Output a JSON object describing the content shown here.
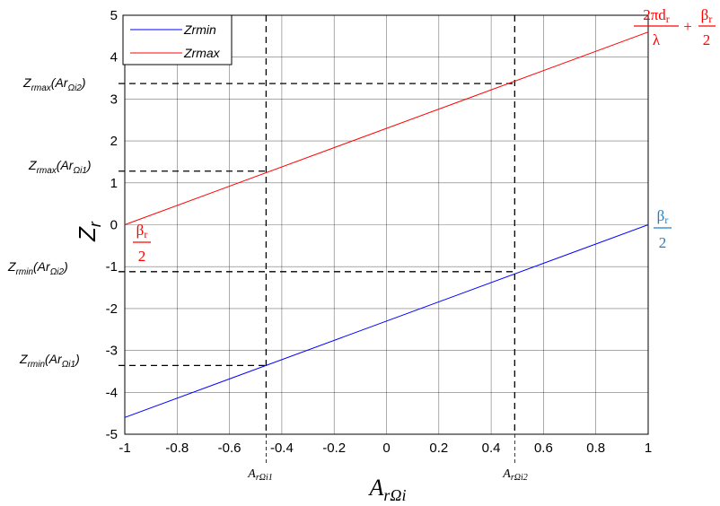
{
  "chart_data": {
    "type": "line",
    "xlabel": "A",
    "xlabel_sub": "rΩi",
    "ylabel": "Z",
    "ylabel_sub": "r",
    "xlim": [
      -1,
      1
    ],
    "ylim": [
      -5,
      5
    ],
    "x_ticks": [
      "-1",
      "-0.8",
      "-0.6",
      "-0.4",
      "-0.2",
      "0",
      "0.2",
      "0.4",
      "0.6",
      "0.8",
      "1"
    ],
    "y_ticks": [
      "5",
      "4",
      "3",
      "2",
      "1",
      "0",
      "-1",
      "-2",
      "-3",
      "-4",
      "-5"
    ],
    "grid": true,
    "legend_position": "top-left",
    "series": [
      {
        "name": "Zrmin",
        "color": "#0000ff",
        "x": [
          -1,
          1
        ],
        "y": [
          -4.6,
          0.0
        ]
      },
      {
        "name": "Zrmax",
        "color": "#ff0000",
        "x": [
          -1,
          1
        ],
        "y": [
          0.0,
          4.6
        ]
      }
    ],
    "vertical_markers": [
      {
        "x": -0.46,
        "label_main": "A",
        "label_sub": "rΩi1"
      },
      {
        "x": 0.49,
        "label_main": "A",
        "label_sub": "rΩi2"
      }
    ],
    "horizontal_markers": [
      {
        "y": 3.37,
        "x_end": 0.49,
        "label_main": "Z",
        "label_sub1": "rmax",
        "label_mid": "(Ar",
        "label_sub2": "Ωi2",
        "label_end": ")"
      },
      {
        "y": 1.28,
        "x_end": -0.46,
        "label_main": "Z",
        "label_sub1": "rmax",
        "label_mid": "(Ar",
        "label_sub2": "Ωi1",
        "label_end": ")"
      },
      {
        "y": -1.12,
        "x_end": 0.49,
        "label_main": "Z",
        "label_sub1": "rmin",
        "label_mid": "(Ar",
        "label_sub2": "Ωi2",
        "label_end": ")"
      },
      {
        "y": -3.36,
        "x_end": -0.46,
        "label_main": "Z",
        "label_sub1": "rmin",
        "label_mid": "(Ar",
        "label_sub2": "Ωi1",
        "label_end": ")"
      }
    ],
    "annotations": {
      "top_right": {
        "num1": "2πd",
        "num1_sub": "r",
        "den1": "λ",
        "plus": "+",
        "num2": "β",
        "num2_sub": "r",
        "den2": "2",
        "color": "#ff0000"
      },
      "bottom_left": {
        "num": "β",
        "num_sub": "r",
        "den": "2",
        "color": "#ff0000"
      },
      "right": {
        "num": "β",
        "num_sub": "r",
        "den": "2",
        "color": "#1f7fc4"
      }
    }
  }
}
